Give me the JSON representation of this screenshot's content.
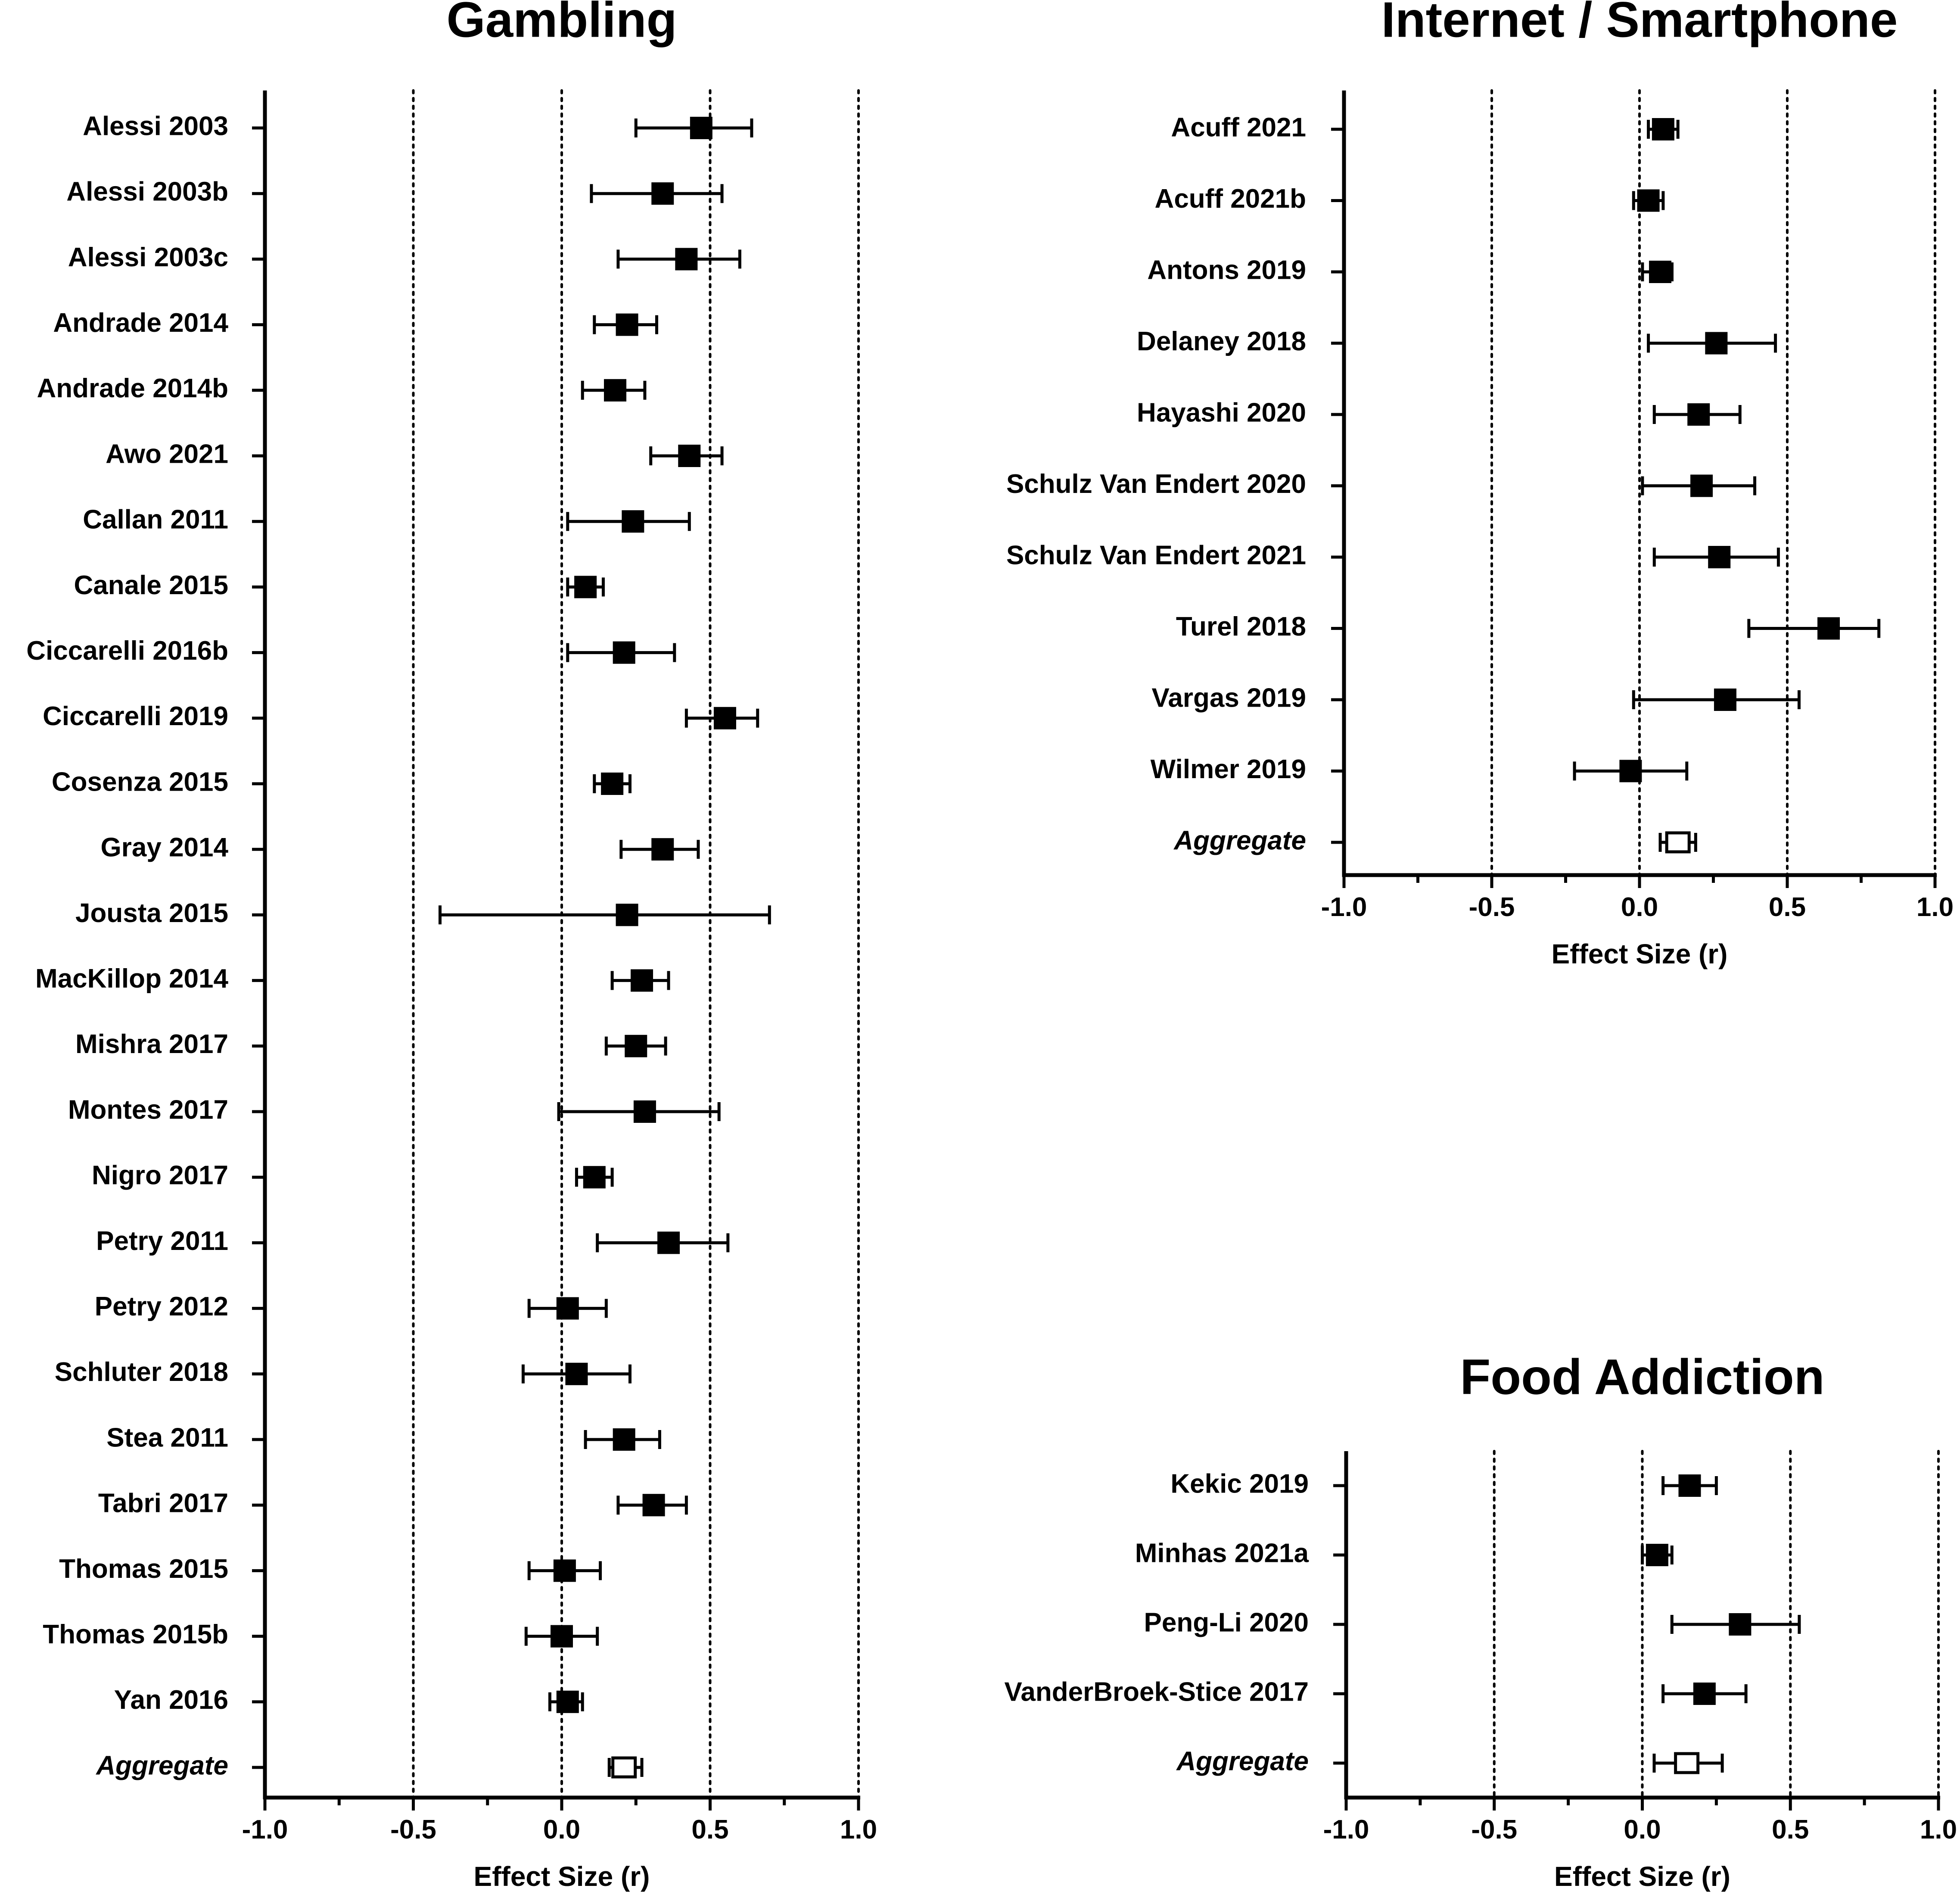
{
  "chart_data": [
    {
      "type": "forest",
      "title": "Gambling",
      "xlabel": "Effect Size (r)",
      "xlim": [
        -1.0,
        1.0
      ],
      "xticks": [
        "-1.0",
        "-0.5",
        "0.0",
        "0.5",
        "1.0"
      ],
      "reference_lines": [
        -0.5,
        0.0,
        0.5,
        1.0
      ],
      "studies": [
        {
          "label": "Alessi 2003",
          "r": 0.47,
          "lo": 0.25,
          "hi": 0.64
        },
        {
          "label": "Alessi 2003b",
          "r": 0.34,
          "lo": 0.1,
          "hi": 0.54
        },
        {
          "label": "Alessi 2003c",
          "r": 0.42,
          "lo": 0.19,
          "hi": 0.6
        },
        {
          "label": "Andrade 2014",
          "r": 0.22,
          "lo": 0.11,
          "hi": 0.32
        },
        {
          "label": "Andrade 2014b",
          "r": 0.18,
          "lo": 0.07,
          "hi": 0.28
        },
        {
          "label": "Awo 2021",
          "r": 0.43,
          "lo": 0.3,
          "hi": 0.54
        },
        {
          "label": "Callan 2011",
          "r": 0.24,
          "lo": 0.02,
          "hi": 0.43
        },
        {
          "label": "Canale 2015",
          "r": 0.08,
          "lo": 0.02,
          "hi": 0.14
        },
        {
          "label": "Ciccarelli 2016b",
          "r": 0.21,
          "lo": 0.02,
          "hi": 0.38
        },
        {
          "label": "Ciccarelli 2019",
          "r": 0.55,
          "lo": 0.42,
          "hi": 0.66
        },
        {
          "label": "Cosenza 2015",
          "r": 0.17,
          "lo": 0.11,
          "hi": 0.23
        },
        {
          "label": "Gray 2014",
          "r": 0.34,
          "lo": 0.2,
          "hi": 0.46
        },
        {
          "label": "Jousta 2015",
          "r": 0.22,
          "lo": -0.41,
          "hi": 0.7
        },
        {
          "label": "MacKillop 2014",
          "r": 0.27,
          "lo": 0.17,
          "hi": 0.36
        },
        {
          "label": "Mishra 2017",
          "r": 0.25,
          "lo": 0.15,
          "hi": 0.35
        },
        {
          "label": "Montes 2017",
          "r": 0.28,
          "lo": -0.01,
          "hi": 0.53
        },
        {
          "label": "Nigro 2017",
          "r": 0.11,
          "lo": 0.05,
          "hi": 0.17
        },
        {
          "label": "Petry 2011",
          "r": 0.36,
          "lo": 0.12,
          "hi": 0.56
        },
        {
          "label": "Petry 2012",
          "r": 0.02,
          "lo": -0.11,
          "hi": 0.15
        },
        {
          "label": "Schluter 2018",
          "r": 0.05,
          "lo": -0.13,
          "hi": 0.23
        },
        {
          "label": "Stea 2011",
          "r": 0.21,
          "lo": 0.08,
          "hi": 0.33
        },
        {
          "label": "Tabri 2017",
          "r": 0.31,
          "lo": 0.19,
          "hi": 0.42
        },
        {
          "label": "Thomas 2015",
          "r": 0.01,
          "lo": -0.11,
          "hi": 0.13
        },
        {
          "label": "Thomas 2015b",
          "r": 0.0,
          "lo": -0.12,
          "hi": 0.12
        },
        {
          "label": "Yan 2016",
          "r": 0.02,
          "lo": -0.04,
          "hi": 0.07
        }
      ],
      "aggregate": {
        "label": "Aggregate",
        "r": 0.21,
        "lo": 0.16,
        "hi": 0.27
      }
    },
    {
      "type": "forest",
      "title": "Internet / Smartphone",
      "xlabel": "Effect Size (r)",
      "xlim": [
        -1.0,
        1.0
      ],
      "xticks": [
        "-1.0",
        "-0.5",
        "0.0",
        "0.5",
        "1.0"
      ],
      "reference_lines": [
        -0.5,
        0.0,
        0.5,
        1.0
      ],
      "studies": [
        {
          "label": "Acuff 2021",
          "r": 0.08,
          "lo": 0.03,
          "hi": 0.13
        },
        {
          "label": "Acuff 2021b",
          "r": 0.03,
          "lo": -0.02,
          "hi": 0.08
        },
        {
          "label": "Antons 2019",
          "r": 0.07,
          "lo": 0.01,
          "hi": 0.11
        },
        {
          "label": "Delaney 2018",
          "r": 0.26,
          "lo": 0.03,
          "hi": 0.46
        },
        {
          "label": "Hayashi 2020",
          "r": 0.2,
          "lo": 0.05,
          "hi": 0.34
        },
        {
          "label": "Schulz Van Endert 2020",
          "r": 0.21,
          "lo": 0.01,
          "hi": 0.39
        },
        {
          "label": "Schulz Van Endert 2021",
          "r": 0.27,
          "lo": 0.05,
          "hi": 0.47
        },
        {
          "label": "Turel 2018",
          "r": 0.64,
          "lo": 0.37,
          "hi": 0.81
        },
        {
          "label": "Vargas 2019",
          "r": 0.29,
          "lo": -0.02,
          "hi": 0.54
        },
        {
          "label": "Wilmer 2019",
          "r": -0.03,
          "lo": -0.22,
          "hi": 0.16
        }
      ],
      "aggregate": {
        "label": "Aggregate",
        "r": 0.13,
        "lo": 0.07,
        "hi": 0.19
      }
    },
    {
      "type": "forest",
      "title": "Food Addiction",
      "xlabel": "Effect Size (r)",
      "xlim": [
        -1.0,
        1.0
      ],
      "xticks": [
        "-1.0",
        "-0.5",
        "0.0",
        "0.5",
        "1.0"
      ],
      "reference_lines": [
        -0.5,
        0.0,
        0.5,
        1.0
      ],
      "studies": [
        {
          "label": "Kekic 2019",
          "r": 0.16,
          "lo": 0.07,
          "hi": 0.25
        },
        {
          "label": "Minhas 2021a",
          "r": 0.05,
          "lo": 0.0,
          "hi": 0.1
        },
        {
          "label": "Peng-Li 2020",
          "r": 0.33,
          "lo": 0.1,
          "hi": 0.53
        },
        {
          "label": "VanderBroek-Stice 2017",
          "r": 0.21,
          "lo": 0.07,
          "hi": 0.35
        }
      ],
      "aggregate": {
        "label": "Aggregate",
        "r": 0.15,
        "lo": 0.04,
        "hi": 0.27
      }
    }
  ]
}
